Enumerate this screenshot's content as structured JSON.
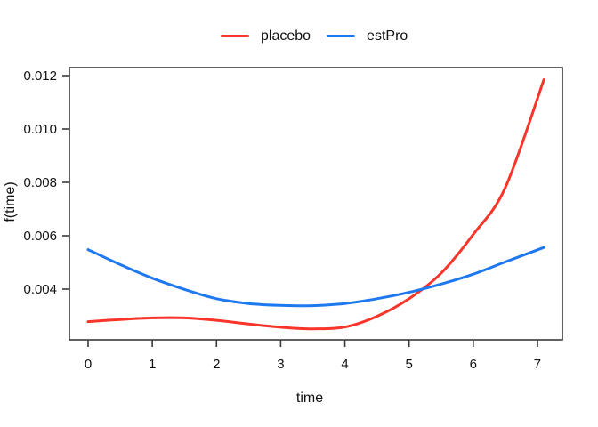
{
  "figure": {
    "background": "#ffffff",
    "frame_color": "#3a3a3a",
    "text_color": "#111111"
  },
  "chart_data": {
    "type": "line",
    "title": "",
    "xlabel": "time",
    "ylabel": "f(time)",
    "xlim": [
      -0.2911,
      7.3885
    ],
    "ylim": [
      0.0021,
      0.0123
    ],
    "xticks": [
      0,
      1,
      2,
      3,
      4,
      5,
      6,
      7
    ],
    "xtick_labels": [
      "0",
      "1",
      "2",
      "3",
      "4",
      "5",
      "6",
      "7"
    ],
    "yticks": [
      0.004,
      0.006,
      0.008,
      0.01,
      0.012
    ],
    "ytick_labels": [
      "0.004",
      "0.006",
      "0.008",
      "0.010",
      "0.012"
    ],
    "grid": false,
    "legend_position": "top-center-horizontal-no-box",
    "series": [
      {
        "name": "placebo",
        "color": "#F8352A",
        "line_width": 3,
        "x": [
          0,
          0.5,
          1,
          1.5,
          2,
          2.5,
          3,
          3.5,
          4,
          4.5,
          5,
          5.5,
          6,
          6.5,
          7.1
        ],
        "y": [
          0.00278,
          0.00286,
          0.00292,
          0.00292,
          0.00283,
          0.00269,
          0.00257,
          0.00251,
          0.00258,
          0.00298,
          0.00364,
          0.0046,
          0.00605,
          0.00781,
          0.01185
        ]
      },
      {
        "name": "estPro",
        "color": "#1E78F0",
        "line_width": 3,
        "x": [
          0,
          0.5,
          1,
          1.5,
          2,
          2.5,
          3,
          3.5,
          4,
          4.5,
          5,
          5.5,
          6,
          6.5,
          7.1
        ],
        "y": [
          0.00548,
          0.00492,
          0.00441,
          0.00399,
          0.00364,
          0.00346,
          0.00339,
          0.00338,
          0.00346,
          0.00364,
          0.00388,
          0.00419,
          0.00456,
          0.00502,
          0.00556
        ]
      }
    ]
  }
}
